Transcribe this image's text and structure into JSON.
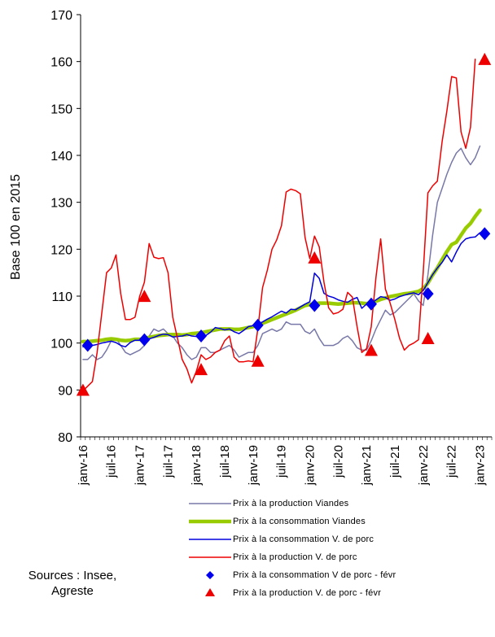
{
  "chart_data": {
    "type": "line",
    "ylabel": "Base 100 en 2015",
    "ylim": [
      80,
      170
    ],
    "yticks": [
      80,
      90,
      100,
      110,
      120,
      130,
      140,
      150,
      160,
      170
    ],
    "xticks": [
      "janv-16",
      "juil-16",
      "janv-17",
      "juil-17",
      "janv-18",
      "juil-18",
      "janv-19",
      "juil-19",
      "janv-20",
      "juil-20",
      "janv-21",
      "juil-21",
      "janv-22",
      "juil-22",
      "janv-23"
    ],
    "x_start": "2016-01",
    "x_end": "2023-03",
    "series": [
      {
        "name": "Prix à la production Viandes",
        "kind": "line",
        "color": "#7878a8",
        "width": 1.5,
        "values": [
          96.5,
          96.5,
          97.5,
          96.5,
          97,
          98.5,
          100.5,
          101,
          99.5,
          98,
          97.5,
          98,
          98.5,
          99.5,
          101.5,
          103,
          102.5,
          103,
          102,
          101.5,
          100,
          99,
          97.5,
          96.5,
          97,
          99,
          99,
          98,
          98,
          98.5,
          99,
          99.5,
          98.5,
          97,
          97.5,
          98,
          98,
          99.5,
          102,
          102.5,
          103,
          102.5,
          103,
          104.5,
          104,
          104,
          104,
          102.5,
          102,
          103,
          101,
          99.5,
          99.5,
          99.5,
          100,
          101,
          101.5,
          100.5,
          99,
          98.5,
          98.5,
          100.5,
          103,
          105,
          107,
          106,
          106.5,
          107.5,
          108.5,
          109.5,
          110.5,
          109,
          108,
          114.5,
          123,
          130,
          133,
          136,
          138.5,
          140.5,
          141.5,
          139.5,
          138,
          139.5,
          142
        ]
      },
      {
        "name": "Prix à la consommation Viandes",
        "kind": "line",
        "color": "#99cc00",
        "width": 4.5,
        "values": [
          100.3,
          100.3,
          100.4,
          100.5,
          100.6,
          100.8,
          100.9,
          100.8,
          100.6,
          100.5,
          100.6,
          100.8,
          100.8,
          101,
          101.2,
          101.4,
          101.6,
          101.7,
          101.8,
          101.8,
          101.8,
          101.7,
          101.8,
          102,
          102.1,
          102.2,
          102.4,
          102.6,
          102.8,
          103,
          103,
          103,
          102.9,
          102.9,
          103.1,
          103.3,
          103.5,
          103.8,
          104.2,
          104.6,
          105,
          105.4,
          105.8,
          106.2,
          106.6,
          107,
          107.5,
          108,
          108.2,
          108.4,
          108.5,
          108.5,
          108.5,
          108.4,
          108.3,
          108.4,
          108.5,
          108.6,
          108.6,
          108.5,
          108.4,
          108.6,
          108.9,
          109.3,
          109.6,
          109.9,
          110.1,
          110.3,
          110.5,
          110.6,
          110.8,
          111,
          111.6,
          112.8,
          114.5,
          116,
          117.8,
          119.5,
          121,
          121.5,
          123,
          124.5,
          125.5,
          127,
          128.3
        ]
      },
      {
        "name": "Prix à la consommation V. de porc",
        "kind": "line",
        "color": "#0000dd",
        "width": 1.5,
        "values": [
          99.2,
          99.3,
          99.5,
          99.7,
          100,
          100.2,
          100.4,
          100.1,
          99.5,
          99.2,
          100.1,
          100.6,
          100.6,
          101,
          100.9,
          101.2,
          101.6,
          101.9,
          101.8,
          101.3,
          101.4,
          101.5,
          101.8,
          101.5,
          101.4,
          101.3,
          101.6,
          102.3,
          103.3,
          103.1,
          102.8,
          103,
          102.4,
          102,
          102.7,
          103.5,
          103.7,
          104,
          104.5,
          105.1,
          105.6,
          106.2,
          106.8,
          106.4,
          107.2,
          107.1,
          107.7,
          108.3,
          108.8,
          114.9,
          113.8,
          110.6,
          110,
          109.7,
          109.2,
          108.9,
          108.7,
          109.3,
          109.7,
          107.4,
          108.3,
          108.5,
          109.2,
          109.9,
          109.7,
          109.1,
          109.4,
          109.9,
          110.2,
          110.5,
          110.7,
          110.3,
          111.2,
          112.9,
          114.6,
          116,
          117.2,
          118.8,
          117.3,
          119.4,
          121.2,
          122.2,
          122.5,
          122.6,
          123.5
        ]
      },
      {
        "name": "Prix à la production V. de porc",
        "kind": "line",
        "color": "#ee0000",
        "width": 1.5,
        "values": [
          89.8,
          90.8,
          91.8,
          98,
          106.5,
          115,
          116,
          118.8,
          110.5,
          105,
          105,
          105.5,
          110,
          113,
          121.2,
          118.3,
          118,
          118.2,
          115,
          105.5,
          101,
          96.5,
          94.5,
          91.5,
          94,
          97.5,
          96.5,
          97,
          98,
          98.5,
          100.5,
          101.5,
          97,
          96,
          96,
          96.2,
          96,
          103,
          111.8,
          115.5,
          120,
          122,
          125,
          132.2,
          132.8,
          132.5,
          131.8,
          122.5,
          118,
          122.8,
          120.5,
          113,
          107.5,
          106.2,
          106.5,
          107.2,
          110.8,
          109.8,
          103.5,
          98,
          98.8,
          103.5,
          114,
          122.2,
          111.5,
          108.5,
          105,
          101,
          98.5,
          99.5,
          100,
          100.7,
          115,
          132,
          133.5,
          134.5,
          143,
          149.5,
          156.8,
          156.5,
          145,
          141.5,
          146,
          160.5
        ]
      },
      {
        "name": "Prix à la consommation V de porc - févr",
        "kind": "marker",
        "marker": "diamond",
        "color": "#0000ee",
        "month_index": [
          1,
          13,
          25,
          37,
          49,
          61,
          73,
          85
        ],
        "values": [
          99.5,
          100.7,
          101.5,
          103.8,
          108,
          108.3,
          110.5,
          123.3
        ]
      },
      {
        "name": "Prix à la production V. de porc - févr",
        "kind": "marker",
        "marker": "triangle",
        "color": "#ee0000",
        "month_index": [
          0,
          13,
          25,
          37,
          49,
          61,
          73,
          85
        ],
        "values": [
          89.8,
          109.8,
          94.2,
          96,
          118,
          98.3,
          100.8,
          160.3
        ]
      }
    ]
  },
  "sources": {
    "line1": "Sources : Insee,",
    "line2": "Agreste"
  }
}
